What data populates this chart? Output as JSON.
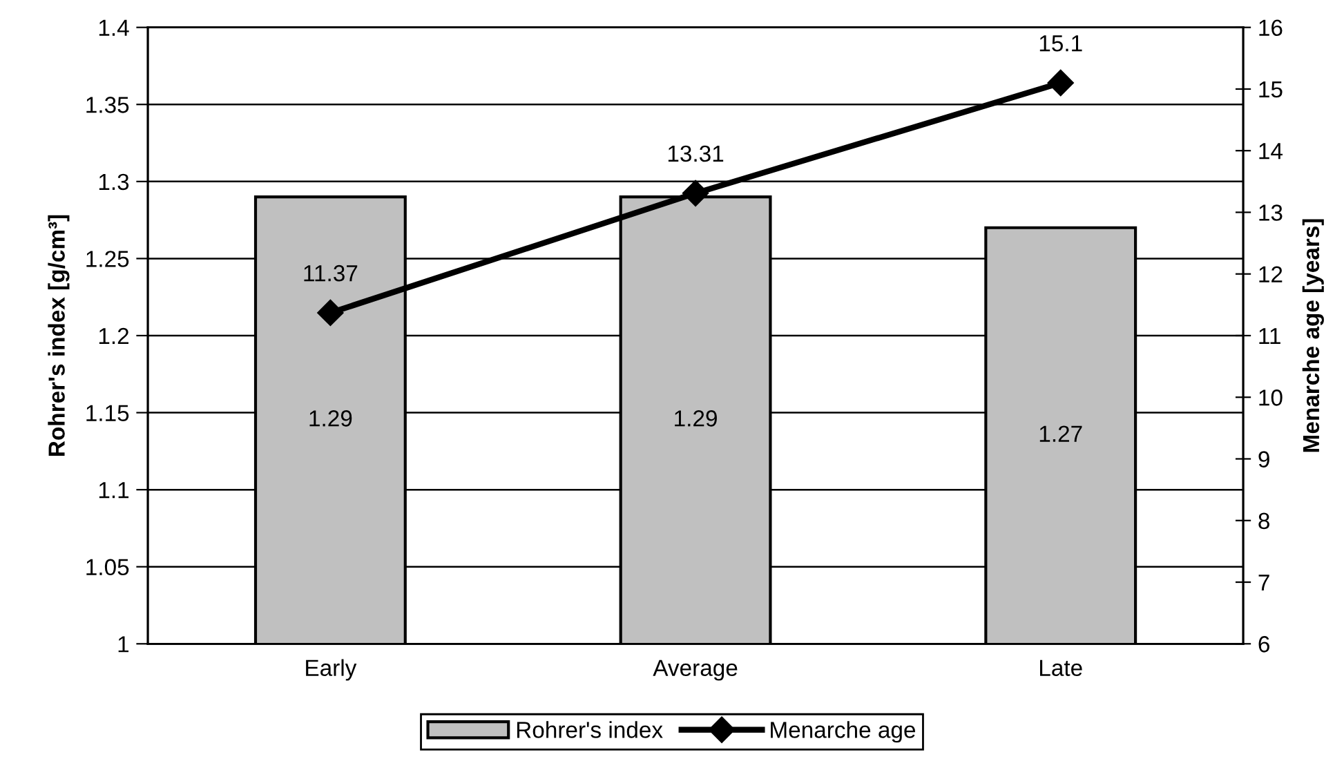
{
  "chart_data": {
    "type": "bar",
    "categories": [
      "Early",
      "Average",
      "Late"
    ],
    "ylabel": "Rohrer's index [g/cm³]",
    "y2label": "Menarche age [years]",
    "ylim": [
      1,
      1.4
    ],
    "yticks": [
      1,
      1.05,
      1.1,
      1.15,
      1.2,
      1.25,
      1.3,
      1.35,
      1.4
    ],
    "y2lim": [
      6,
      16
    ],
    "y2ticks": [
      6,
      7,
      8,
      9,
      10,
      11,
      12,
      13,
      14,
      15,
      16
    ],
    "grid": "y",
    "legend": "bottom",
    "data_labels": true,
    "marker": "diamond",
    "line_style": "solid",
    "series": [
      {
        "name": "Rohrer's index",
        "color": "#c0c0c0",
        "values": [
          1.29,
          1.29,
          1.27
        ]
      },
      {
        "name": "Menarche age",
        "type": "line",
        "axis": "y2",
        "color": "#000000",
        "values": [
          11.37,
          13.31,
          15.1
        ]
      }
    ]
  }
}
